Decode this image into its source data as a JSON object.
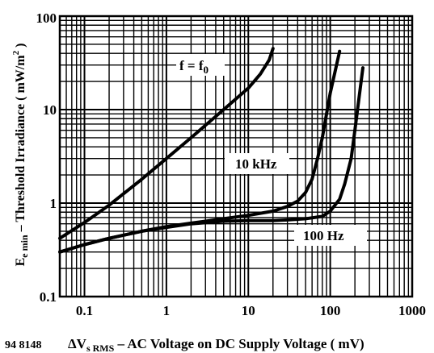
{
  "chart_data": {
    "type": "line",
    "figure_number": "94 8148",
    "xlabel": {
      "symbol": "ΔV",
      "subscript": "s RMS",
      "text": " – AC Voltage on DC Supply Voltage ( mV)"
    },
    "ylabel": {
      "symbol": "E",
      "subscript": "e min",
      "text": " – Threshold Irradiance ( mW/m",
      "sup": "2",
      "end": " )"
    },
    "xscale": "log",
    "yscale": "log",
    "xlim": [
      0.05,
      1000
    ],
    "ylim": [
      0.1,
      100
    ],
    "xticks": [
      {
        "v": 0.1,
        "label": "0.1"
      },
      {
        "v": 1,
        "label": "1"
      },
      {
        "v": 10,
        "label": "10"
      },
      {
        "v": 100,
        "label": "100"
      },
      {
        "v": 1000,
        "label": "1000"
      }
    ],
    "yticks": [
      {
        "v": 0.1,
        "label": "0.1"
      },
      {
        "v": 1,
        "label": "1"
      },
      {
        "v": 10,
        "label": "10"
      },
      {
        "v": 100,
        "label": "100"
      }
    ],
    "grid": true,
    "series": [
      {
        "name": "f = f0",
        "label_main": "f = f",
        "label_sub": "0",
        "x": [
          0.05,
          0.1,
          0.2,
          0.5,
          1,
          2,
          5,
          10,
          14,
          18,
          20
        ],
        "y": [
          0.42,
          0.62,
          0.95,
          1.8,
          3.0,
          5.0,
          10.0,
          17.0,
          24.0,
          34.0,
          45.0
        ]
      },
      {
        "name": "10 kHz",
        "label_main": "10 kHz",
        "x": [
          0.05,
          0.1,
          0.2,
          0.5,
          1,
          2,
          5,
          10,
          20,
          30,
          40,
          50,
          60,
          70,
          80,
          100,
          130
        ],
        "y": [
          0.3,
          0.36,
          0.42,
          0.5,
          0.56,
          0.61,
          0.68,
          0.74,
          0.82,
          0.92,
          1.05,
          1.3,
          1.8,
          3.0,
          5.0,
          15.0,
          42.0
        ]
      },
      {
        "name": "100 Hz",
        "label_main": "100 Hz",
        "x": [
          0.05,
          0.1,
          0.2,
          0.5,
          1,
          2,
          5,
          10,
          20,
          30,
          50,
          80,
          100,
          130,
          150,
          180,
          200,
          250
        ],
        "y": [
          0.3,
          0.36,
          0.42,
          0.5,
          0.55,
          0.6,
          0.64,
          0.65,
          0.65,
          0.66,
          0.68,
          0.72,
          0.82,
          1.1,
          1.6,
          3.0,
          6.0,
          28.0
        ]
      }
    ]
  }
}
